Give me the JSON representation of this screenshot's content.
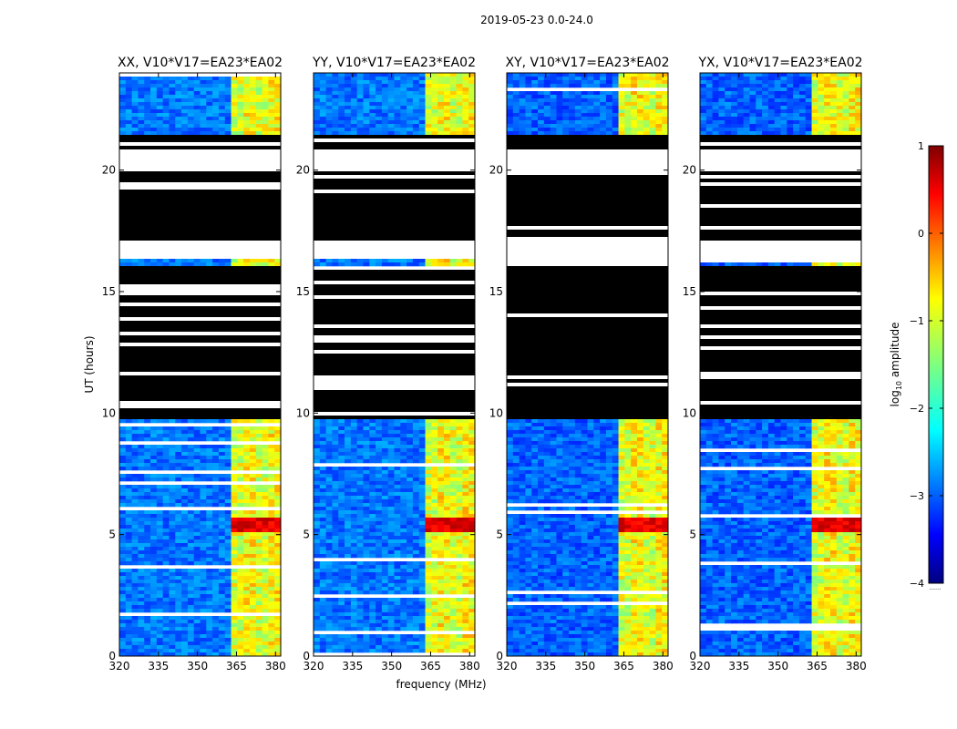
{
  "figure": {
    "suptitle": "2019-05-23 0.0-24.0",
    "xlabel": "frequency (MHz)",
    "ylabel": "UT (hours)"
  },
  "chart_data": {
    "type": "heatmap",
    "x": {
      "label": "frequency (MHz)",
      "lim": [
        320,
        382
      ],
      "ticks": [
        320,
        335,
        350,
        365,
        380
      ]
    },
    "y": {
      "label": "UT (hours)",
      "lim": [
        0,
        24
      ],
      "ticks": [
        0,
        5,
        10,
        15,
        20
      ]
    },
    "panels": [
      {
        "title": "XX, V10*V17=EA23*EA02",
        "pol": "XX"
      },
      {
        "title": "YY, V10*V17=EA23*EA02",
        "pol": "YY"
      },
      {
        "title": "XY, V10*V17=EA23*EA02",
        "pol": "XY"
      },
      {
        "title": "YX, V10*V17=EA23*EA02",
        "pol": "YX"
      }
    ],
    "flagged_black_ut_ranges": [
      [
        9.8,
        16.2
      ],
      [
        17.2,
        20.0
      ],
      [
        20.9,
        21.6
      ]
    ],
    "blank_ut_ranges": [
      [
        16.4,
        17.2
      ],
      [
        20.0,
        20.9
      ]
    ],
    "bright_band_mhz": [
      362.7,
      381.0
    ],
    "peak_ut_range": [
      5.2,
      5.8
    ],
    "colorbar": {
      "label": "log",
      "label_sub": "10",
      "label_tail": " amplitude",
      "lim": [
        -4,
        1
      ],
      "ticks": [
        1,
        0,
        -1,
        -2,
        -3,
        -4
      ],
      "tick_labels": [
        "1",
        "0",
        "−1",
        "−2",
        "−3",
        "−4"
      ],
      "colormap": "jet",
      "footer": "......."
    }
  }
}
